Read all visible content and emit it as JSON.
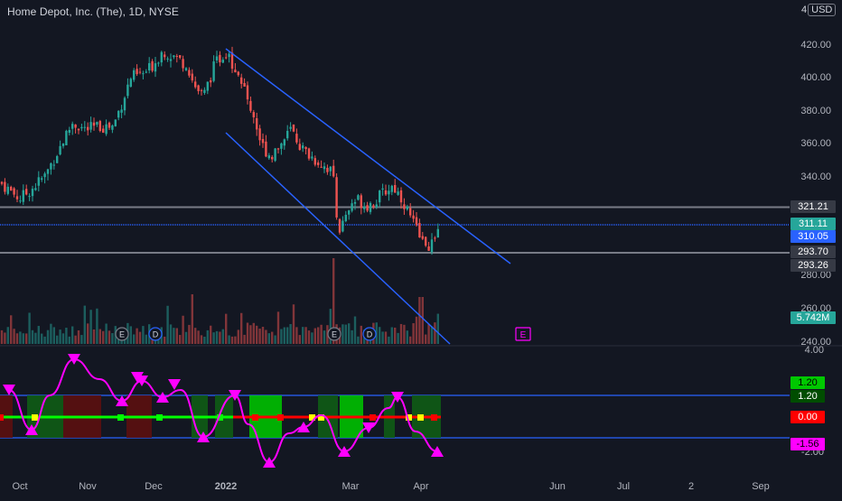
{
  "header": {
    "title": "Home Depot, Inc. (The), 1D, NYSE",
    "currency_prefix": "4",
    "currency": "USD"
  },
  "colors": {
    "background": "#131722",
    "up": "#26a69a",
    "down": "#ef5350",
    "channel": "#2962ff",
    "level": "#787b86",
    "magenta": "#ff00ff",
    "osc_green": "#00ff00",
    "osc_red": "#ff0000",
    "osc_yellow": "#ffff00"
  },
  "price_axis": {
    "ticks": [
      "420.00",
      "400.00",
      "380.00",
      "360.00",
      "340.00",
      "280.00",
      "260.00",
      "240.00"
    ]
  },
  "price_labels": [
    {
      "text": "321.21",
      "bg": "#363a45"
    },
    {
      "text": "311.11",
      "bg": "#26a69a"
    },
    {
      "text": "310.05",
      "bg": "#2962ff"
    },
    {
      "text": "293.70",
      "bg": "#363a45"
    },
    {
      "text": "293.26",
      "bg": "#363a45"
    },
    {
      "text": "5.742M",
      "bg": "#26a69a"
    }
  ],
  "osc_axis": {
    "ticks": [
      "4.00",
      "-2.00"
    ]
  },
  "osc_labels": [
    {
      "text": "1.20",
      "bg": "#00c800",
      "color": "#000000"
    },
    {
      "text": "1.20",
      "bg": "#004d00",
      "color": "#ffffff"
    },
    {
      "text": "0.00",
      "bg": "#ff0000",
      "color": "#ffffff"
    },
    {
      "text": "-1.56",
      "bg": "#ff00ff",
      "color": "#000000"
    }
  ],
  "x_axis": {
    "labels": [
      "Oct",
      "Nov",
      "Dec",
      "2022",
      "Mar",
      "Apr",
      "Jun",
      "Jul",
      "2",
      "Sep"
    ]
  },
  "events": {
    "earnings": "E",
    "dividend": "D"
  }
}
